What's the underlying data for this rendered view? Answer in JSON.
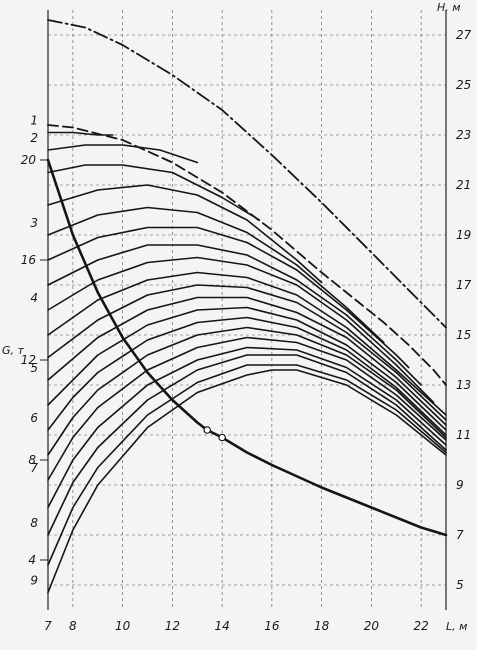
{
  "chart_data": {
    "type": "line",
    "title": "",
    "xlabel": "L, м",
    "ylabel_left": "G, т",
    "ylabel_right": "H, м",
    "xlim": [
      7,
      23
    ],
    "ylim_right": [
      4,
      28
    ],
    "ylim_left": [
      2,
      26
    ],
    "x_ticks": [
      "7",
      "8",
      "10",
      "12",
      "14",
      "16",
      "18",
      "20",
      "22"
    ],
    "y_right_ticks": [
      "5",
      "7",
      "9",
      "11",
      "13",
      "15",
      "17",
      "19",
      "21",
      "23",
      "25",
      "27"
    ],
    "y_left_ticks": [
      "4",
      "8",
      "12",
      "16",
      "20"
    ],
    "grid": true,
    "series": [
      {
        "name": "",
        "style": "dashdot",
        "axis": "right",
        "x": [
          7.0,
          8.5,
          10.0,
          12.0,
          14.0,
          16.0,
          18.0,
          20.0,
          22.0,
          23.0
        ],
        "y": [
          27.6,
          27.3,
          26.6,
          25.4,
          24.0,
          22.2,
          20.3,
          18.3,
          16.3,
          15.3
        ]
      },
      {
        "name": "",
        "style": "dashed",
        "axis": "right",
        "x": [
          7.0,
          8.0,
          10.0,
          12.0,
          14.0,
          16.0,
          18.0,
          19.5,
          20.5,
          21.5,
          22.5,
          23.0
        ],
        "y": [
          23.4,
          23.3,
          22.8,
          21.9,
          20.7,
          19.2,
          17.5,
          16.3,
          15.5,
          14.6,
          13.6,
          13.0
        ]
      },
      {
        "name": "1",
        "style": "solid",
        "axis": "right",
        "x": [
          7.0,
          8.0,
          9.0,
          9.6
        ],
        "y": [
          23.1,
          23.1,
          23.0,
          23.0
        ]
      },
      {
        "name": "2",
        "style": "solid",
        "axis": "right",
        "x": [
          7.0,
          8.5,
          10.0,
          11.5,
          13.0
        ],
        "y": [
          22.4,
          22.6,
          22.6,
          22.4,
          21.9
        ]
      },
      {
        "name": "",
        "style": "solid",
        "axis": "right",
        "x": [
          7.0,
          8.5,
          10.0,
          12.0,
          14.0,
          15.5
        ],
        "y": [
          21.5,
          21.8,
          21.8,
          21.5,
          20.5,
          19.6
        ]
      },
      {
        "name": "",
        "style": "solid",
        "axis": "right",
        "x": [
          7.0,
          9.0,
          11.0,
          13.0,
          15.0,
          17.0,
          18.0
        ],
        "y": [
          20.2,
          20.8,
          21.0,
          20.6,
          19.6,
          18.0,
          17.1
        ]
      },
      {
        "name": "3",
        "style": "solid",
        "axis": "right",
        "x": [
          7.0,
          9.0,
          11.0,
          13.0,
          15.0,
          17.0,
          19.0,
          20.5
        ],
        "y": [
          19.0,
          19.8,
          20.1,
          19.9,
          19.1,
          17.8,
          16.1,
          14.7
        ]
      },
      {
        "name": "",
        "style": "solid",
        "axis": "right",
        "x": [
          7.0,
          9.0,
          11.0,
          13.0,
          15.0,
          17.0,
          19.0,
          21.0,
          21.5
        ],
        "y": [
          18.0,
          18.9,
          19.3,
          19.3,
          18.7,
          17.6,
          16.0,
          14.2,
          13.7
        ]
      },
      {
        "name": "",
        "style": "solid",
        "axis": "right",
        "x": [
          7.0,
          9.0,
          11.0,
          13.0,
          15.0,
          17.0,
          19.0,
          21.0,
          22.0
        ],
        "y": [
          17.0,
          18.0,
          18.6,
          18.6,
          18.2,
          17.2,
          15.8,
          14.0,
          13.0
        ]
      },
      {
        "name": "4",
        "style": "solid",
        "axis": "right",
        "x": [
          7.0,
          9.0,
          11.0,
          13.0,
          15.0,
          17.0,
          19.0,
          21.0,
          22.5
        ],
        "y": [
          16.0,
          17.2,
          17.9,
          18.1,
          17.8,
          17.0,
          15.6,
          13.8,
          12.3
        ]
      },
      {
        "name": "",
        "style": "solid",
        "axis": "right",
        "x": [
          7.0,
          9.0,
          11.0,
          13.0,
          15.0,
          17.0,
          19.0,
          21.0,
          23.0
        ],
        "y": [
          15.0,
          16.4,
          17.2,
          17.5,
          17.3,
          16.6,
          15.3,
          13.6,
          11.8
        ]
      },
      {
        "name": "",
        "style": "solid",
        "axis": "right",
        "x": [
          7.0,
          9.0,
          11.0,
          13.0,
          15.0,
          17.0,
          19.0,
          21.0,
          23.0
        ],
        "y": [
          14.1,
          15.6,
          16.6,
          17.0,
          16.9,
          16.3,
          15.1,
          13.5,
          11.6
        ]
      },
      {
        "name": "5",
        "style": "solid",
        "axis": "right",
        "x": [
          7.0,
          9.0,
          11.0,
          13.0,
          15.0,
          17.0,
          19.0,
          21.0,
          23.0
        ],
        "y": [
          13.2,
          14.9,
          16.0,
          16.5,
          16.5,
          15.9,
          14.9,
          13.3,
          11.4
        ]
      },
      {
        "name": "",
        "style": "solid",
        "axis": "right",
        "x": [
          7.0,
          9.0,
          11.0,
          13.0,
          15.0,
          17.0,
          19.0,
          21.0,
          23.0
        ],
        "y": [
          12.2,
          14.2,
          15.4,
          16.0,
          16.1,
          15.6,
          14.6,
          13.1,
          11.2
        ]
      },
      {
        "name": "6",
        "style": "solid",
        "axis": "right",
        "x": [
          7.0,
          8.0,
          9.0,
          11.0,
          13.0,
          15.0,
          17.0,
          19.0,
          21.0,
          23.0
        ],
        "y": [
          11.2,
          12.5,
          13.5,
          14.8,
          15.5,
          15.7,
          15.3,
          14.4,
          12.9,
          11.0
        ]
      },
      {
        "name": "",
        "style": "solid",
        "axis": "right",
        "x": [
          7.0,
          8.0,
          9.0,
          11.0,
          13.0,
          15.0,
          17.0,
          19.0,
          21.0,
          23.0
        ],
        "y": [
          10.2,
          11.7,
          12.8,
          14.2,
          15.0,
          15.3,
          15.0,
          14.2,
          12.8,
          10.9
        ]
      },
      {
        "name": "7",
        "style": "solid",
        "axis": "right",
        "x": [
          7.0,
          8.0,
          9.0,
          11.0,
          13.0,
          15.0,
          17.0,
          19.0,
          21.0,
          23.0
        ],
        "y": [
          9.2,
          10.9,
          12.1,
          13.6,
          14.5,
          14.9,
          14.7,
          14.0,
          12.6,
          10.8
        ]
      },
      {
        "name": "",
        "style": "solid",
        "axis": "right",
        "x": [
          7.0,
          8.0,
          9.0,
          11.0,
          13.0,
          15.0,
          17.0,
          19.0,
          21.0,
          23.0
        ],
        "y": [
          8.1,
          10.0,
          11.3,
          13.0,
          14.0,
          14.5,
          14.4,
          13.7,
          12.4,
          10.6
        ]
      },
      {
        "name": "8",
        "style": "solid",
        "axis": "right",
        "x": [
          7.0,
          8.0,
          9.0,
          11.0,
          13.0,
          15.0,
          17.0,
          19.0,
          21.0,
          23.0
        ],
        "y": [
          7.0,
          9.1,
          10.5,
          12.4,
          13.6,
          14.2,
          14.2,
          13.5,
          12.2,
          10.4
        ]
      },
      {
        "name": "",
        "style": "solid",
        "axis": "right",
        "x": [
          7.0,
          8.0,
          9.0,
          11.0,
          13.0,
          15.0,
          17.0,
          19.0,
          21.0,
          23.0
        ],
        "y": [
          5.8,
          8.1,
          9.7,
          11.8,
          13.1,
          13.8,
          13.8,
          13.2,
          12.0,
          10.3
        ]
      },
      {
        "name": "9",
        "style": "solid",
        "axis": "right",
        "x": [
          7.0,
          8.0,
          9.0,
          11.0,
          13.0,
          15.0,
          16.0,
          17.0,
          19.0,
          21.0,
          23.0
        ],
        "y": [
          4.7,
          7.2,
          9.0,
          11.3,
          12.7,
          13.4,
          13.6,
          13.6,
          13.0,
          11.8,
          10.2
        ]
      },
      {
        "name": "",
        "style": "bold",
        "axis": "left",
        "x": [
          7.0,
          8.0,
          9.0,
          10.0,
          11.0,
          12.0,
          13.0,
          13.4,
          14.0,
          15.0,
          16.0,
          18.0,
          20.0,
          22.0,
          23.0
        ],
        "y": [
          20.0,
          17.0,
          14.7,
          12.9,
          11.5,
          10.4,
          9.5,
          9.2,
          8.9,
          8.3,
          7.8,
          6.9,
          6.1,
          5.3,
          5.0
        ]
      }
    ],
    "markers": [
      {
        "axis": "left",
        "x": 13.4,
        "y": 9.2
      },
      {
        "axis": "left",
        "x": 14.0,
        "y": 8.9
      }
    ]
  }
}
